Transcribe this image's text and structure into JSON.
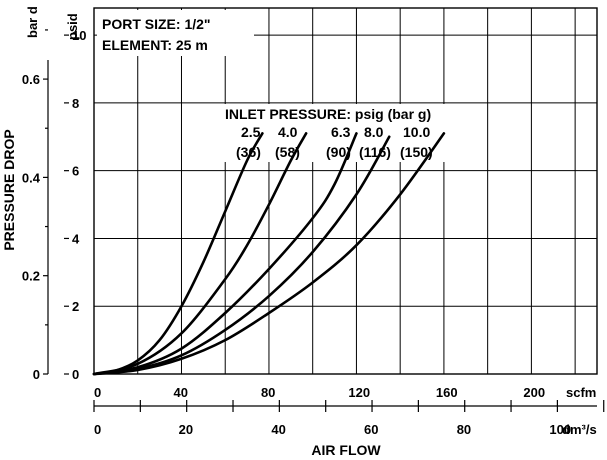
{
  "chart_data": {
    "type": "line",
    "header": {
      "port_size": "PORT SIZE: 1/2\"",
      "element": "ELEMENT: 25   m"
    },
    "legend": {
      "title": "INLET PRESSURE: psig (bar g)",
      "psig": [
        "2.5",
        "4.0",
        "6.3",
        "8.0",
        "10.0"
      ],
      "bar": [
        "(36)",
        "(58)",
        "(90)",
        "(116)",
        "(150)"
      ]
    },
    "y_axis": {
      "label": "PRESSURE DROP",
      "bar_unit": "bar d",
      "psid_unit": "psid",
      "psid_ticks": [
        "0",
        "2",
        "4",
        "6",
        "8",
        "10"
      ],
      "psid_values": [
        0,
        2,
        4,
        6,
        8,
        10
      ],
      "bar_ticks": [
        "0",
        "0.2",
        "0.4",
        "0.6"
      ],
      "bar_values": [
        0,
        0.2,
        0.4,
        0.6
      ],
      "ylim_psid": [
        0,
        10.8
      ]
    },
    "x_axis": {
      "label": "AIR FLOW",
      "scfm_unit": "scfm",
      "scfm_ticks": [
        "0",
        "40",
        "80",
        "120",
        "160",
        "200"
      ],
      "scfm_values": [
        0,
        40,
        80,
        120,
        160,
        200
      ],
      "dm3s_unit": "dm³/s",
      "dm3s_ticks": [
        "0",
        "20",
        "40",
        "60",
        "80",
        "100"
      ],
      "dm3s_values": [
        0,
        20,
        40,
        60,
        80,
        100
      ],
      "xlim_scfm": [
        0,
        230
      ]
    },
    "grid": true,
    "series": [
      {
        "name": "2.5 (36)",
        "x": [
          0,
          10,
          20,
          30,
          40,
          50,
          60,
          70,
          77
        ],
        "y": [
          0,
          0.1,
          0.4,
          1.0,
          2.0,
          3.3,
          4.8,
          6.3,
          7.1
        ]
      },
      {
        "name": "4.0 (58)",
        "x": [
          0,
          20,
          40,
          60,
          70,
          80,
          90,
          97
        ],
        "y": [
          0,
          0.3,
          1.2,
          2.8,
          3.8,
          5.0,
          6.3,
          7.1
        ]
      },
      {
        "name": "6.3 (90)",
        "x": [
          0,
          20,
          40,
          60,
          80,
          100,
          110,
          120
        ],
        "y": [
          0,
          0.2,
          0.75,
          1.8,
          3.1,
          4.6,
          5.6,
          7.1
        ]
      },
      {
        "name": "8.0 (116)",
        "x": [
          0,
          20,
          40,
          60,
          80,
          100,
          120,
          135
        ],
        "y": [
          0,
          0.15,
          0.55,
          1.3,
          2.3,
          3.6,
          5.3,
          7.0
        ]
      },
      {
        "name": "10.0 (150)",
        "x": [
          0,
          20,
          40,
          60,
          80,
          100,
          120,
          140,
          160
        ],
        "y": [
          0,
          0.12,
          0.45,
          1.0,
          1.8,
          2.7,
          3.8,
          5.3,
          7.1
        ]
      }
    ]
  }
}
